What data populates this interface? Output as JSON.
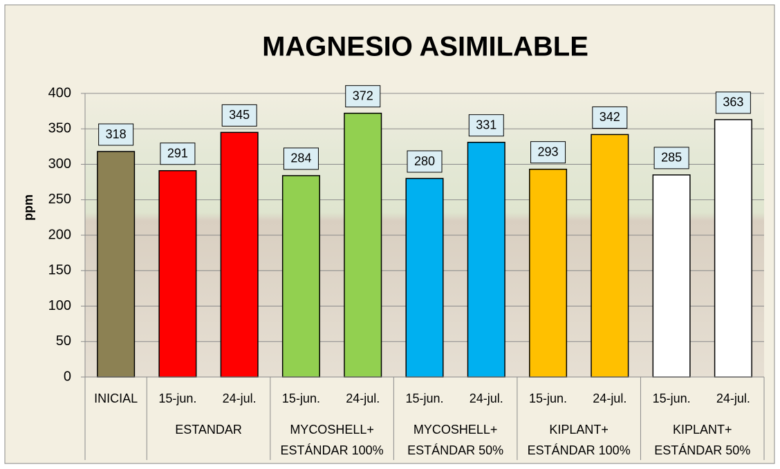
{
  "chart_data": {
    "type": "bar",
    "title": "MAGNESIO ASIMILABLE",
    "y_label": "ppm",
    "ylim": [
      0,
      400
    ],
    "yticks": [
      0,
      50,
      100,
      150,
      200,
      250,
      300,
      350,
      400
    ],
    "grid": true,
    "label_box_color": "#dbeef4",
    "groups": [
      {
        "categories": [
          "INICIAL"
        ],
        "values": [
          318
        ],
        "colors": [
          "#8c8153"
        ]
      },
      {
        "label": [
          "ESTANDAR"
        ],
        "categories": [
          "15-jun.",
          "24-jul."
        ],
        "values": [
          291,
          345
        ],
        "colors": [
          "#ff0000",
          "#ff0000"
        ]
      },
      {
        "label": [
          "MYCOSHELL+",
          "ESTÁNDAR 100%"
        ],
        "categories": [
          "15-jun.",
          "24-jul."
        ],
        "values": [
          284,
          372
        ],
        "colors": [
          "#92d050",
          "#92d050"
        ]
      },
      {
        "label": [
          "MYCOSHELL+",
          "ESTÁNDAR 50%"
        ],
        "categories": [
          "15-jun.",
          "24-jul."
        ],
        "values": [
          280,
          331
        ],
        "colors": [
          "#00b0f0",
          "#00b0f0"
        ]
      },
      {
        "label": [
          "KIPLANT+",
          "ESTÁNDAR 100%"
        ],
        "categories": [
          "15-jun.",
          "24-jul."
        ],
        "values": [
          293,
          342
        ],
        "colors": [
          "#ffc000",
          "#ffc000"
        ]
      },
      {
        "label": [
          "KIPLANT+",
          "ESTÁNDAR 50%"
        ],
        "categories": [
          "15-jun.",
          "24-jul."
        ],
        "values": [
          285,
          363
        ],
        "colors": [
          "#ffffff",
          "#ffffff"
        ]
      }
    ]
  }
}
